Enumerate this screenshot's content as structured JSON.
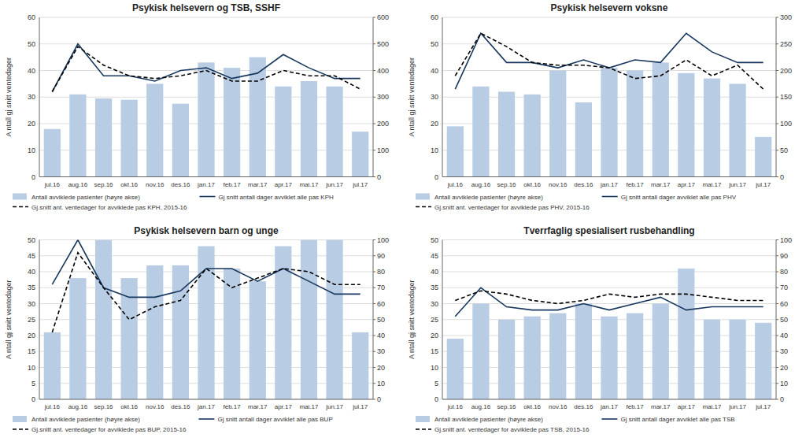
{
  "chart_data": [
    {
      "type": "bar",
      "title": "Psykisk helsevern og TSB, SSHF",
      "categories": [
        "jul.16",
        "aug.16",
        "sep.16",
        "okt.16",
        "nov.16",
        "des.16",
        "jan.17",
        "feb.17",
        "mar.17",
        "apr.17",
        "mai.17",
        "jun.17",
        "jul.17"
      ],
      "ylabel": "A ntall gj snitt ventedager",
      "series": [
        {
          "name": "Antall avviklede pasienter (høyre akse)",
          "type": "bar",
          "axis": "y2",
          "color": "#b8cce4",
          "values": [
            180,
            310,
            295,
            290,
            350,
            275,
            430,
            410,
            450,
            340,
            360,
            340,
            170
          ]
        },
        {
          "name": "Gj snitt antall dager avviklet alle pas KPH",
          "type": "line",
          "line_style": "solid",
          "color": "#17375e",
          "values": [
            32,
            50,
            38,
            38,
            36,
            40,
            41,
            37,
            39,
            46,
            41,
            37,
            37
          ]
        },
        {
          "name": "Gj.snitt ant. ventedager for avviklede pas KPH, 2015-16",
          "type": "line",
          "line_style": "dashed",
          "color": "#000000",
          "values": [
            32,
            49,
            42,
            38,
            37,
            38,
            40,
            36,
            36,
            40,
            38,
            38,
            33
          ]
        }
      ],
      "ylim": [
        0,
        60
      ],
      "yticks": [
        0,
        10,
        20,
        30,
        40,
        50,
        60
      ],
      "y2lim": [
        0,
        600
      ],
      "y2ticks": [
        0,
        100,
        200,
        300,
        400,
        500,
        600
      ],
      "grid": true,
      "legend": "bottom"
    },
    {
      "type": "bar",
      "title": "Psykisk helsevern voksne",
      "categories": [
        "jul.16",
        "aug.16",
        "sep.16",
        "okt.16",
        "nov.16",
        "des.16",
        "jan.17",
        "feb.17",
        "mar.17",
        "apr.17",
        "mai.17",
        "jun.17",
        "jul.17"
      ],
      "ylabel": "A ntall gj snitt ventedager",
      "series": [
        {
          "name": "Antall avviklede pasienter (høyre akse)",
          "type": "bar",
          "axis": "y2",
          "color": "#b8cce4",
          "values": [
            95,
            170,
            160,
            155,
            200,
            140,
            205,
            200,
            215,
            195,
            185,
            175,
            75
          ]
        },
        {
          "name": "Gj snitt antall dager avviklet alle pas PHV",
          "type": "line",
          "line_style": "solid",
          "color": "#17375e",
          "values": [
            33,
            54,
            43,
            43,
            41,
            44,
            41,
            44,
            43,
            54,
            47,
            43,
            43
          ]
        },
        {
          "name": "Gj.snitt ant. ventedager for avviklede pas PHV, 2015-16",
          "type": "line",
          "line_style": "dashed",
          "color": "#000000",
          "values": [
            38,
            54,
            49,
            43,
            42,
            42,
            41,
            37,
            38,
            44,
            38,
            42,
            33
          ]
        }
      ],
      "ylim": [
        0,
        60
      ],
      "yticks": [
        0,
        10,
        20,
        30,
        40,
        50,
        60
      ],
      "y2lim": [
        0,
        300
      ],
      "y2ticks": [
        0,
        50,
        100,
        150,
        200,
        250,
        300
      ],
      "grid": true,
      "legend": "bottom"
    },
    {
      "type": "bar",
      "title": "Psykisk helsevern barn og unge",
      "categories": [
        "jul.16",
        "aug.16",
        "sep.16",
        "okt.16",
        "nov.16",
        "des.16",
        "jan.17",
        "feb.17",
        "mar.17",
        "apr.17",
        "mai.17",
        "jun.17",
        "jul.17"
      ],
      "ylabel": "A ntall gj snitt ventedager",
      "series": [
        {
          "name": "Antall avviklede pasienter (høyre akse)",
          "type": "bar",
          "axis": "y2",
          "color": "#b8cce4",
          "values": [
            42,
            76,
            100,
            76,
            84,
            84,
            96,
            82,
            74,
            96,
            100,
            100,
            42
          ]
        },
        {
          "name": "Gj snitt antall dager avviklet alle pas BUP",
          "type": "line",
          "line_style": "solid",
          "color": "#17375e",
          "values": [
            36,
            50,
            35,
            32,
            32,
            34,
            41,
            41,
            37,
            41,
            37,
            33,
            33
          ]
        },
        {
          "name": "Gj.snitt ant. ventedager for avviklede pas BUP, 2015-16",
          "type": "line",
          "line_style": "dashed",
          "color": "#000000",
          "values": [
            21,
            46,
            35,
            25,
            29,
            31,
            41,
            35,
            38,
            41,
            40,
            36,
            36
          ]
        }
      ],
      "ylim": [
        0,
        50
      ],
      "yticks": [
        0,
        5,
        10,
        15,
        20,
        25,
        30,
        35,
        40,
        45,
        50
      ],
      "y2lim": [
        0,
        100
      ],
      "y2ticks": [
        0,
        10,
        20,
        30,
        40,
        50,
        60,
        70,
        80,
        90,
        100
      ],
      "grid": true,
      "legend": "bottom"
    },
    {
      "type": "bar",
      "title": "Tverrfaglig spesialisert rusbehandling",
      "categories": [
        "jul.16",
        "aug.16",
        "sep.16",
        "okt.16",
        "nov.16",
        "des.16",
        "jan.17",
        "feb.17",
        "mar.17",
        "apr.17",
        "mai.17",
        "jun.17",
        "jul.17"
      ],
      "ylabel": "A ntall gj snitt ventedager",
      "series": [
        {
          "name": "Antall avviklede pasienter (høyre akse)",
          "type": "bar",
          "axis": "y2",
          "color": "#b8cce4",
          "values": [
            38,
            60,
            50,
            52,
            54,
            60,
            52,
            54,
            60,
            82,
            50,
            50,
            48
          ]
        },
        {
          "name": "Gj snitt antall dager avviklet alle pas TSB",
          "type": "line",
          "line_style": "solid",
          "color": "#17375e",
          "values": [
            26,
            35,
            29,
            28,
            28,
            30,
            28,
            30,
            32,
            28,
            29,
            29,
            29
          ]
        },
        {
          "name": "Gj.snitt ant. ventedager for avviklede pas TSB, 2015-16",
          "type": "line",
          "line_style": "dashed",
          "color": "#000000",
          "values": [
            31,
            34,
            33,
            31,
            30,
            31,
            33,
            32,
            33,
            33,
            32,
            31,
            31
          ]
        }
      ],
      "ylim": [
        0,
        50
      ],
      "yticks": [
        0,
        5,
        10,
        15,
        20,
        25,
        30,
        35,
        40,
        45,
        50
      ],
      "y2lim": [
        0,
        100
      ],
      "y2ticks": [
        0,
        10,
        20,
        30,
        40,
        50,
        60,
        70,
        80,
        90,
        100
      ],
      "grid": true,
      "legend": "bottom"
    }
  ]
}
